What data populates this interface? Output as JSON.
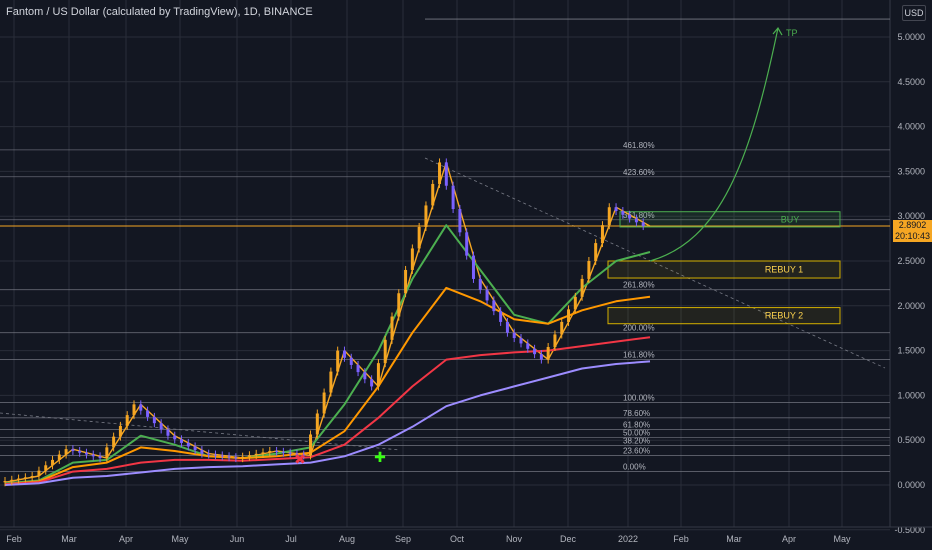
{
  "title": "Fantom / US Dollar (calculated by TradingView), 1D, BINANCE",
  "currency": "USD",
  "last_price": "2.8902",
  "countdown": "20:10:43",
  "colors": {
    "background": "#131722",
    "grid": "#2a2e39",
    "candle_up": "#f5a623",
    "candle_down": "#7b61ff",
    "ma_green": "#4caf50",
    "ma_orange": "#ff9800",
    "ma_red": "#f23645",
    "ma_purple": "#9c8cff",
    "zone_border": "#d4b000",
    "projection": "#4caf50"
  },
  "chart_data": {
    "type": "line",
    "title": "Fantom / US Dollar (calculated by TradingView), 1D, BINANCE",
    "x_ticks": [
      "Feb",
      "Mar",
      "Apr",
      "May",
      "Jun",
      "Jul",
      "Aug",
      "Sep",
      "Oct",
      "Nov",
      "Dec",
      "2022",
      "Feb",
      "Mar",
      "Apr",
      "May"
    ],
    "y_ticks": [
      "5.0000",
      "4.5000",
      "4.0000",
      "3.5000",
      "3.0000",
      "2.5000",
      "2.0000",
      "1.5000",
      "1.0000",
      "0.5000",
      "0.0000",
      "-0.5000"
    ],
    "ylim": [
      -0.5,
      5.3
    ],
    "fib_levels": [
      {
        "label": "0.00%",
        "value": 0.15
      },
      {
        "label": "23.60%",
        "value": 0.33
      },
      {
        "label": "38.20%",
        "value": 0.44
      },
      {
        "label": "50.00%",
        "value": 0.53
      },
      {
        "label": "61.80%",
        "value": 0.62
      },
      {
        "label": "78.60%",
        "value": 0.75
      },
      {
        "label": "100.00%",
        "value": 0.92
      },
      {
        "label": "161.80%",
        "value": 1.4
      },
      {
        "label": "200.00%",
        "value": 1.7
      },
      {
        "label": "261.80%",
        "value": 2.18
      },
      {
        "label": "361.80%",
        "value": 2.96
      },
      {
        "label": "423.60%",
        "value": 3.44
      },
      {
        "label": "461.80%",
        "value": 3.74
      }
    ],
    "zones": [
      {
        "label": "BUY",
        "low": 2.88,
        "high": 3.05
      },
      {
        "label": "REBUY 1",
        "low": 2.31,
        "high": 2.5
      },
      {
        "label": "REBUY 2",
        "low": 1.8,
        "high": 1.98
      }
    ],
    "target_label": "TP",
    "target_value": 5.1,
    "series": [
      {
        "values": [
          0.03,
          0.1,
          0.4,
          0.3,
          0.9,
          0.55,
          0.35,
          0.3,
          0.38,
          0.33,
          1.5,
          1.1,
          2.4,
          3.6,
          2.3,
          1.7,
          1.4,
          2.1,
          3.1,
          2.89
        ]
      },
      {
        "values": [
          0.02,
          0.05,
          0.25,
          0.28,
          0.55,
          0.45,
          0.32,
          0.3,
          0.35,
          0.42,
          0.9,
          1.5,
          2.3,
          2.9,
          2.4,
          1.9,
          1.8,
          2.2,
          2.5,
          2.6
        ]
      },
      {
        "values": [
          0.01,
          0.04,
          0.2,
          0.25,
          0.42,
          0.38,
          0.32,
          0.3,
          0.32,
          0.36,
          0.6,
          1.1,
          1.7,
          2.2,
          2.05,
          1.85,
          1.8,
          1.95,
          2.05,
          2.1
        ]
      },
      {
        "values": [
          0.01,
          0.03,
          0.15,
          0.18,
          0.25,
          0.28,
          0.28,
          0.27,
          0.29,
          0.31,
          0.45,
          0.75,
          1.1,
          1.4,
          1.45,
          1.48,
          1.5,
          1.55,
          1.6,
          1.65
        ]
      },
      {
        "values": [
          0.0,
          0.02,
          0.08,
          0.1,
          0.14,
          0.18,
          0.2,
          0.21,
          0.23,
          0.25,
          0.32,
          0.45,
          0.65,
          0.88,
          1.0,
          1.1,
          1.2,
          1.3,
          1.35,
          1.38
        ]
      }
    ]
  }
}
